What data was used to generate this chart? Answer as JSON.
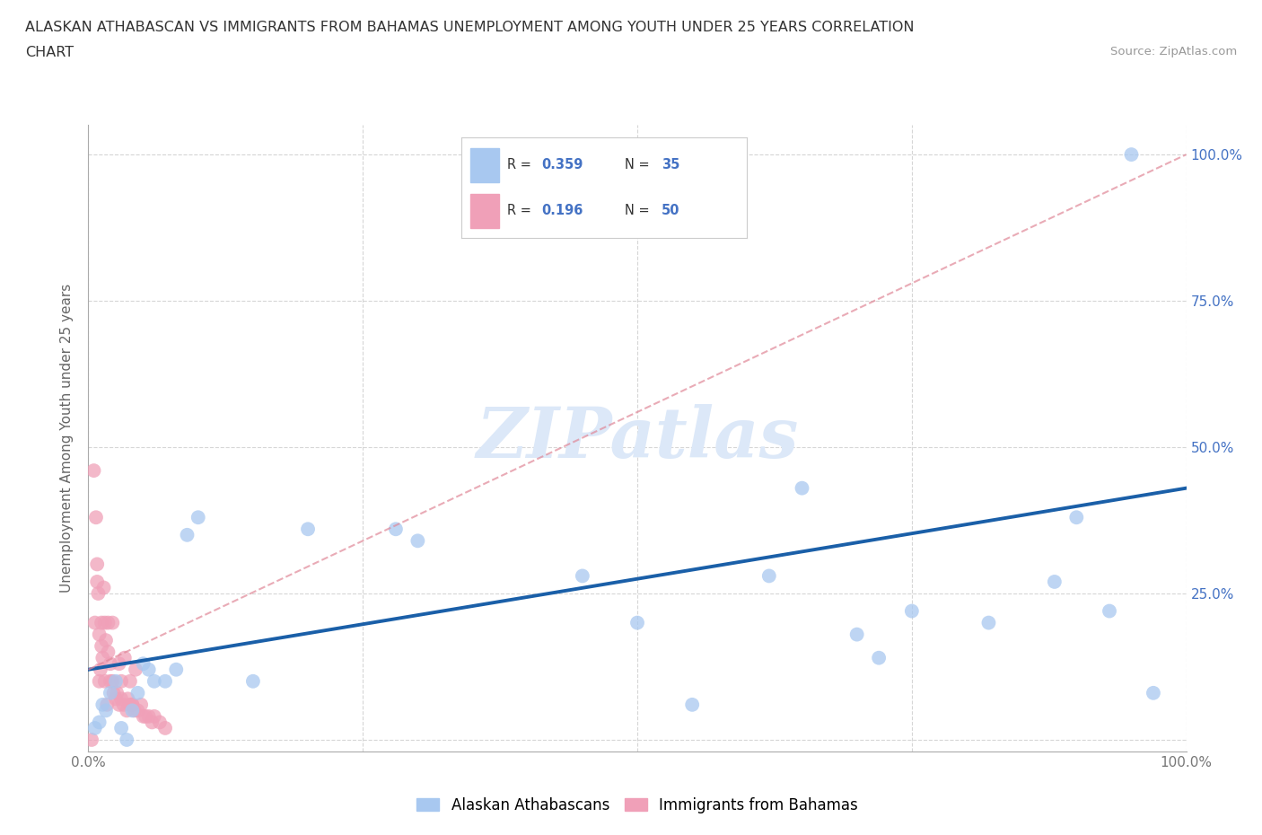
{
  "title_line1": "ALASKAN ATHABASCAN VS IMMIGRANTS FROM BAHAMAS UNEMPLOYMENT AMONG YOUTH UNDER 25 YEARS CORRELATION",
  "title_line2": "CHART",
  "source": "Source: ZipAtlas.com",
  "ylabel": "Unemployment Among Youth under 25 years",
  "xlim": [
    0,
    1.0
  ],
  "ylim": [
    -0.02,
    1.05
  ],
  "xticks": [
    0,
    0.25,
    0.5,
    0.75,
    1.0
  ],
  "xticklabels": [
    "0.0%",
    "",
    "",
    "",
    "100.0%"
  ],
  "yticks": [
    0.25,
    0.5,
    0.75,
    1.0
  ],
  "yticklabels": [
    "25.0%",
    "50.0%",
    "75.0%",
    "100.0%"
  ],
  "blue_R": 0.359,
  "blue_N": 35,
  "pink_R": 0.196,
  "pink_N": 50,
  "blue_color": "#a8c8f0",
  "pink_color": "#f0a0b8",
  "blue_line_color": "#1a5fa8",
  "pink_line_color": "#e08898",
  "tick_color": "#4472c4",
  "watermark_color": "#dce8f8",
  "blue_x": [
    0.006,
    0.01,
    0.013,
    0.016,
    0.02,
    0.025,
    0.03,
    0.035,
    0.04,
    0.045,
    0.05,
    0.055,
    0.06,
    0.07,
    0.08,
    0.09,
    0.1,
    0.15,
    0.2,
    0.28,
    0.3,
    0.45,
    0.5,
    0.55,
    0.62,
    0.65,
    0.7,
    0.72,
    0.75,
    0.82,
    0.88,
    0.9,
    0.93,
    0.95,
    0.97
  ],
  "blue_y": [
    0.02,
    0.03,
    0.06,
    0.05,
    0.08,
    0.1,
    0.02,
    0.0,
    0.05,
    0.08,
    0.13,
    0.12,
    0.1,
    0.1,
    0.12,
    0.35,
    0.38,
    0.1,
    0.36,
    0.36,
    0.34,
    0.28,
    0.2,
    0.06,
    0.28,
    0.43,
    0.18,
    0.14,
    0.22,
    0.2,
    0.27,
    0.38,
    0.22,
    1.0,
    0.08
  ],
  "pink_x": [
    0.003,
    0.005,
    0.006,
    0.007,
    0.008,
    0.008,
    0.009,
    0.01,
    0.01,
    0.011,
    0.012,
    0.012,
    0.013,
    0.014,
    0.015,
    0.015,
    0.016,
    0.017,
    0.018,
    0.018,
    0.02,
    0.02,
    0.022,
    0.022,
    0.023,
    0.025,
    0.026,
    0.028,
    0.028,
    0.03,
    0.03,
    0.032,
    0.033,
    0.035,
    0.036,
    0.038,
    0.038,
    0.04,
    0.04,
    0.042,
    0.043,
    0.045,
    0.048,
    0.05,
    0.052,
    0.055,
    0.058,
    0.06,
    0.065,
    0.07
  ],
  "pink_y": [
    0.0,
    0.46,
    0.2,
    0.38,
    0.3,
    0.27,
    0.25,
    0.18,
    0.1,
    0.12,
    0.16,
    0.2,
    0.14,
    0.26,
    0.2,
    0.1,
    0.17,
    0.06,
    0.15,
    0.2,
    0.1,
    0.13,
    0.1,
    0.2,
    0.08,
    0.07,
    0.08,
    0.06,
    0.13,
    0.07,
    0.1,
    0.06,
    0.14,
    0.05,
    0.07,
    0.06,
    0.1,
    0.06,
    0.06,
    0.05,
    0.12,
    0.05,
    0.06,
    0.04,
    0.04,
    0.04,
    0.03,
    0.04,
    0.03,
    0.02
  ],
  "blue_trend_x": [
    0.0,
    1.0
  ],
  "blue_trend_y": [
    0.12,
    0.43
  ],
  "pink_trend_x": [
    0.0,
    1.0
  ],
  "pink_trend_y": [
    0.12,
    1.0
  ],
  "legend_athabascan": "Alaskan Athabascans",
  "legend_bahamas": "Immigrants from Bahamas",
  "grid_color": "#cccccc",
  "background_color": "#ffffff"
}
